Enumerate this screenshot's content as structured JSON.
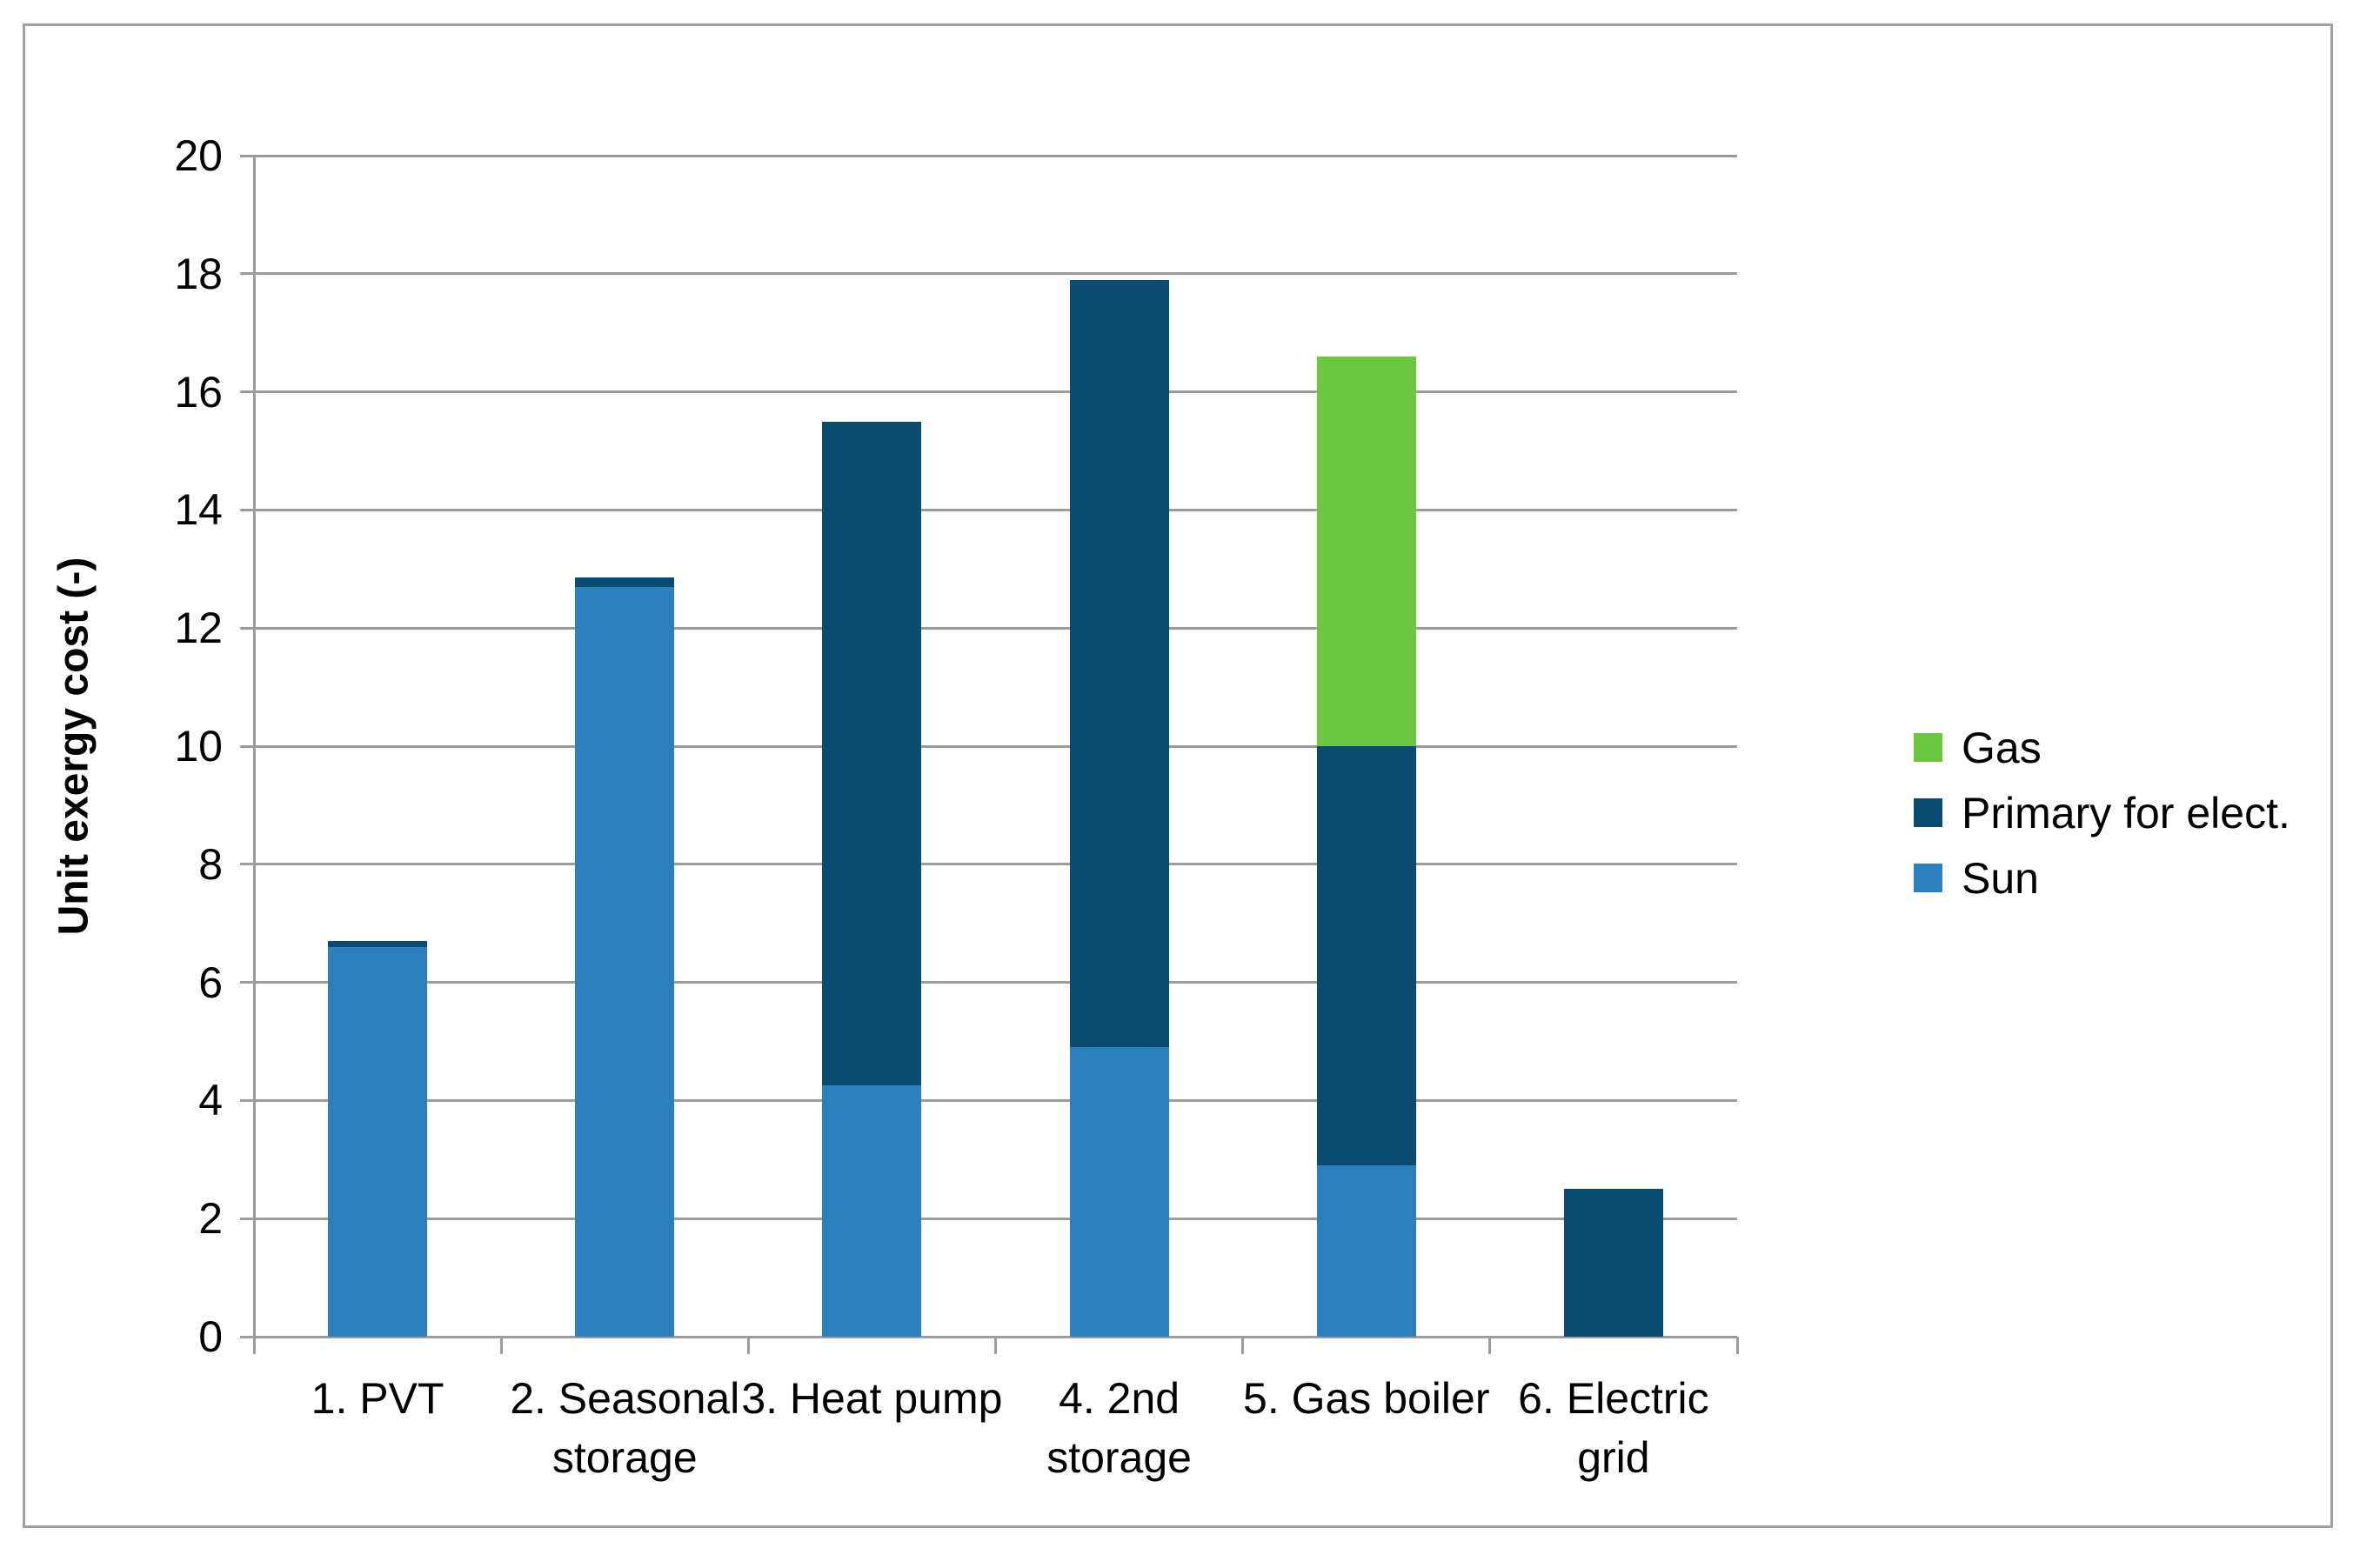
{
  "chart_data": {
    "type": "bar",
    "stacked": true,
    "title": "",
    "ylabel": "Unit exergy cost (-)",
    "xlabel": "",
    "ylim": [
      0,
      20
    ],
    "ytick_step": 2,
    "grid": true,
    "legend_position": "right",
    "categories": [
      "1. PVT",
      "2. Seasonal storage",
      "3. Heat pump",
      "4. 2nd storage",
      "5. Gas boiler",
      "6. Electric grid"
    ],
    "category_label_lines": [
      [
        "1. PVT"
      ],
      [
        "2. Seasonal",
        "storage"
      ],
      [
        "3. Heat pump"
      ],
      [
        "4. 2nd",
        "storage"
      ],
      [
        "5. Gas boiler"
      ],
      [
        "6. Electric",
        "grid"
      ]
    ],
    "series": [
      {
        "name": "Sun",
        "color": "#2b80bd",
        "values": [
          6.6,
          12.7,
          4.25,
          4.9,
          2.9,
          0
        ]
      },
      {
        "name": "Primary for elect.",
        "color": "#094b71",
        "values": [
          0.1,
          0.15,
          11.25,
          13.0,
          7.1,
          2.5
        ]
      },
      {
        "name": "Gas",
        "color": "#6ac73f",
        "values": [
          0,
          0,
          0,
          0,
          6.6,
          0
        ]
      }
    ],
    "totals": [
      6.7,
      12.85,
      15.5,
      17.9,
      16.6,
      2.5
    ],
    "legend_order": [
      "Gas",
      "Primary for elect.",
      "Sun"
    ],
    "yticks": [
      0,
      2,
      4,
      6,
      8,
      10,
      12,
      14,
      16,
      18,
      20
    ]
  },
  "colors": {
    "gridline": "#9c9c9c",
    "axis": "#9c9c9c",
    "border": "#a0a0a0",
    "text": "#000000",
    "background": "#ffffff"
  }
}
